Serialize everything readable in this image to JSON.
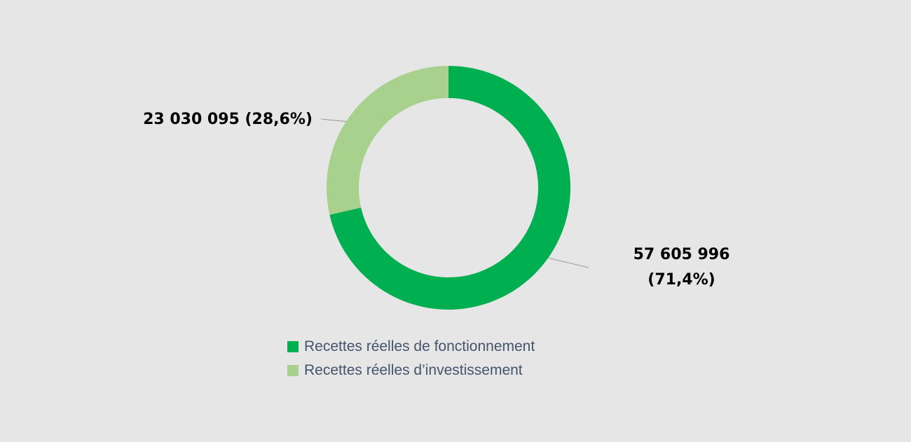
{
  "chart_data": {
    "type": "donut",
    "categories": [
      "Recettes réelles de fonctionnement",
      "Recettes réelles d’investissement"
    ],
    "values": [
      57605996,
      23030095
    ],
    "value_labels": [
      "57 605 996 (71,4%)",
      "23 030 095 (28,6%)"
    ],
    "colors": [
      "#00b050",
      "#a9d18e"
    ]
  }
}
